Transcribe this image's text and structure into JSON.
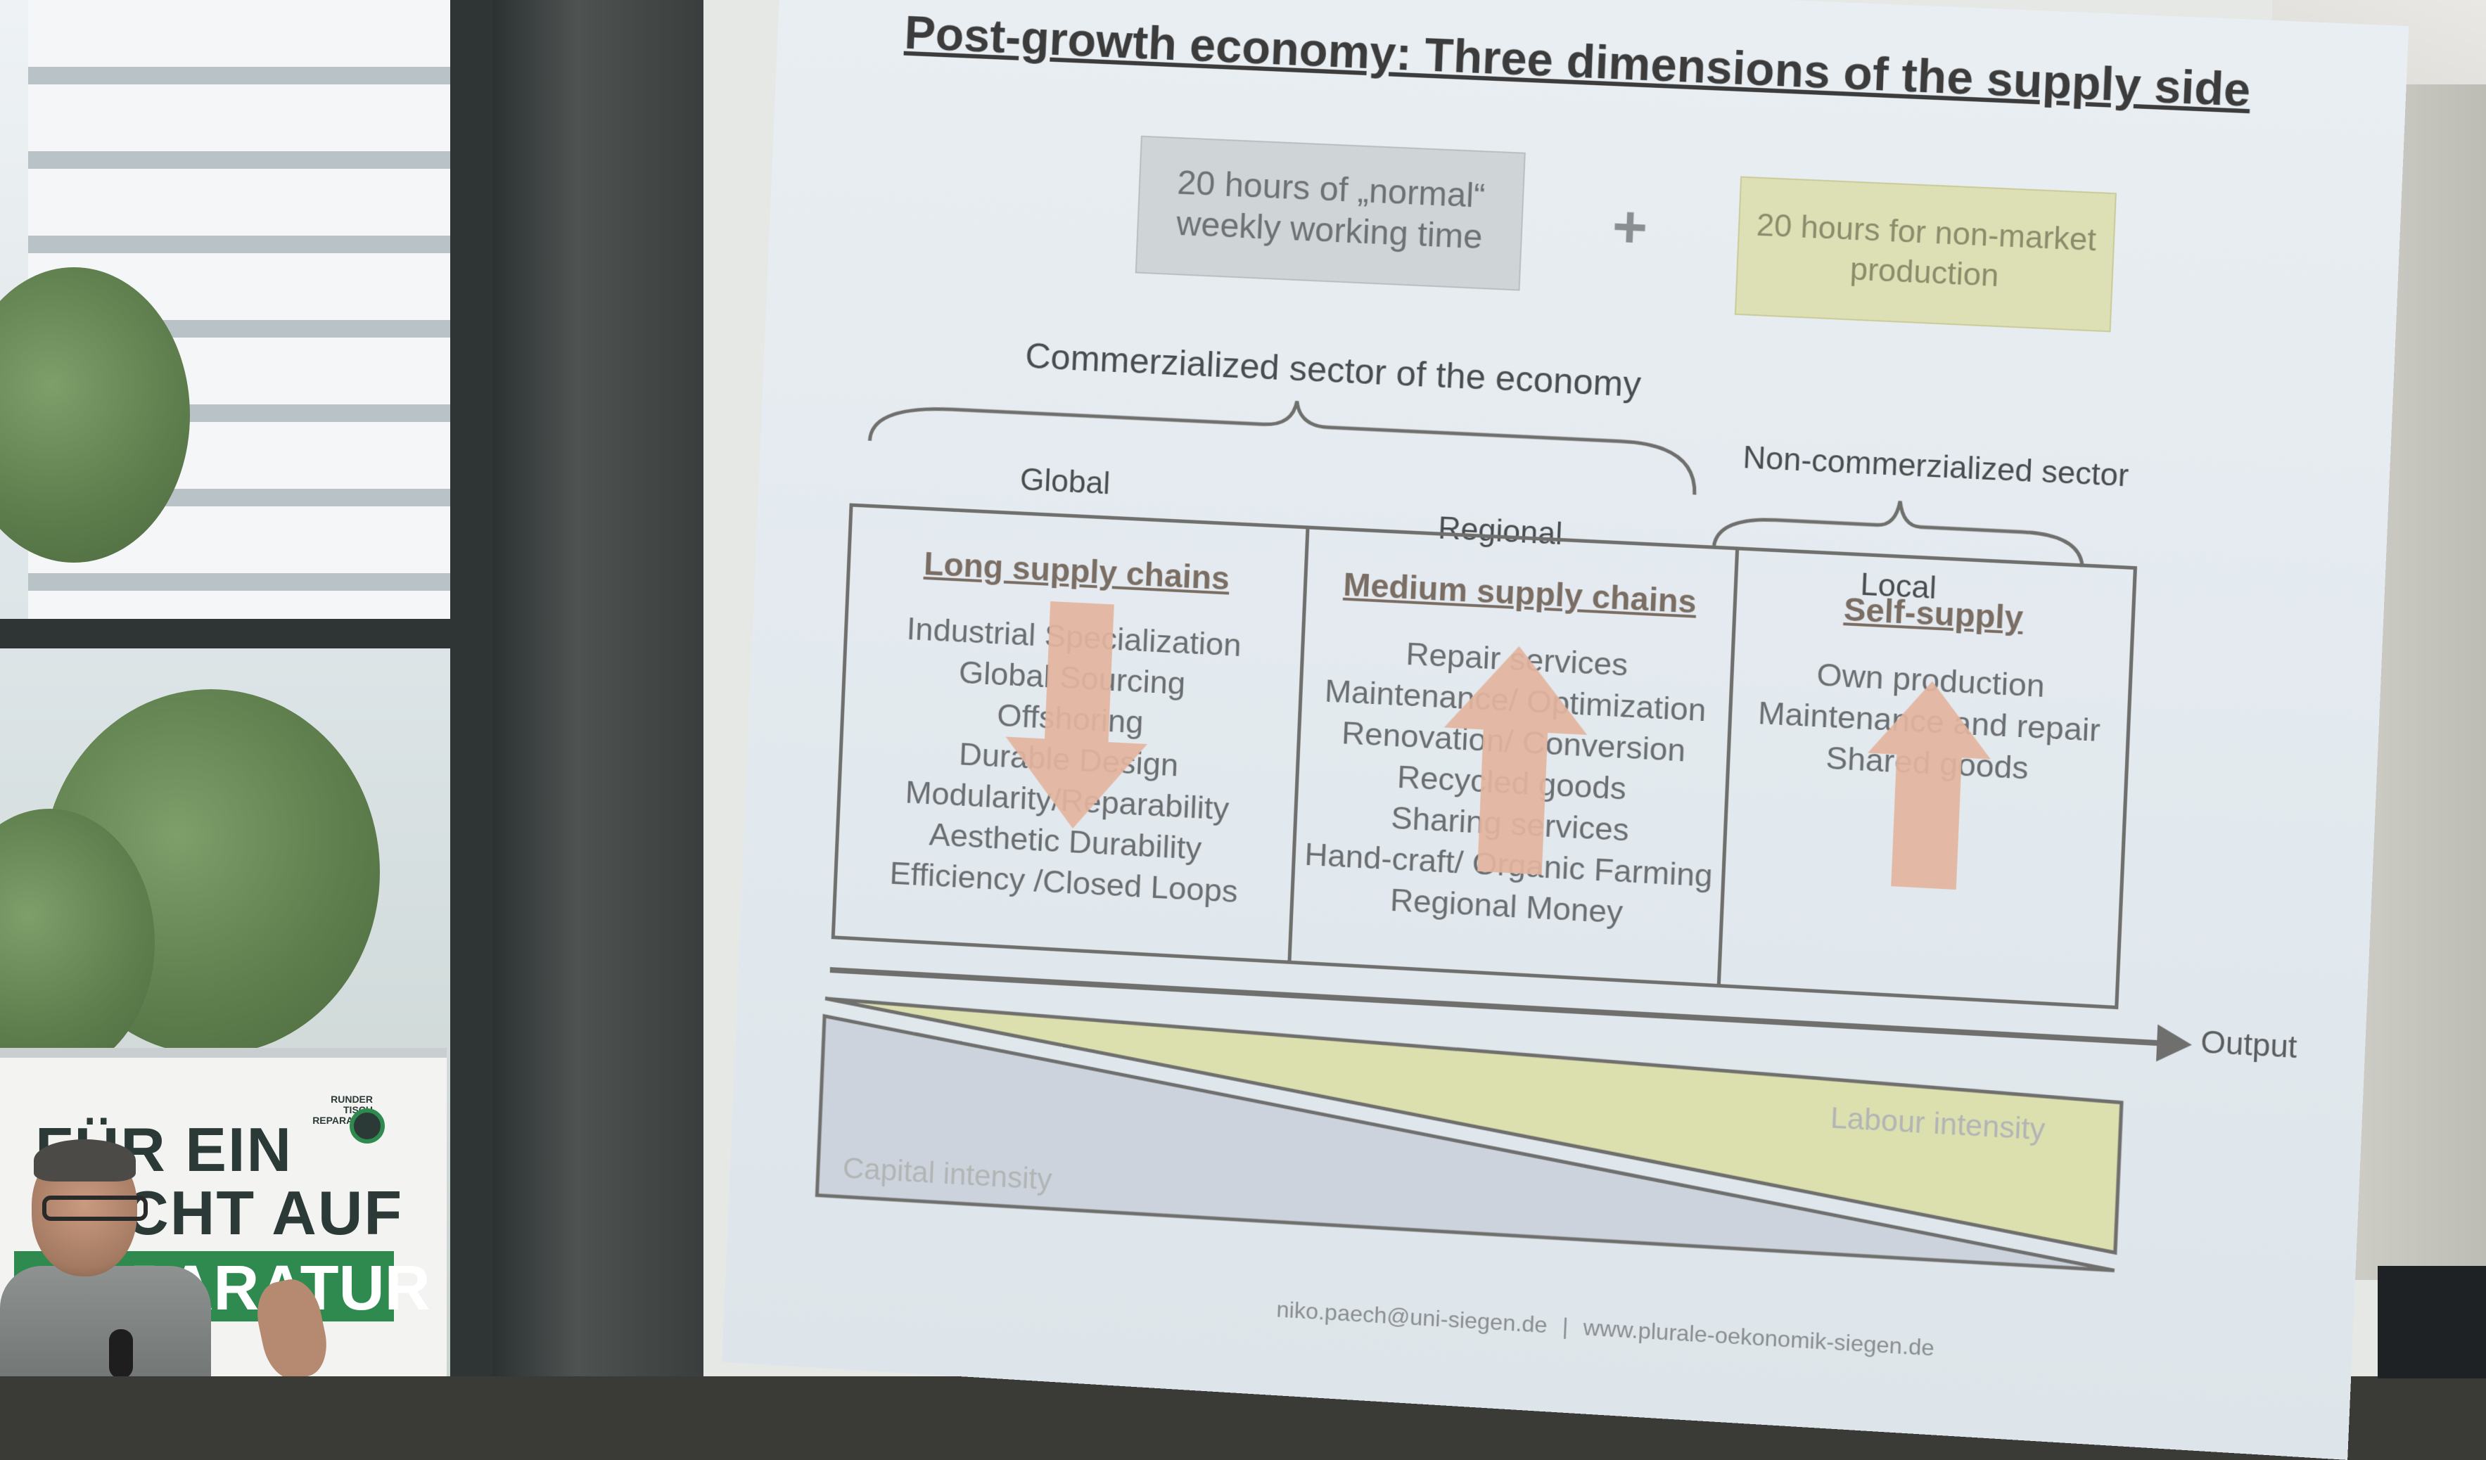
{
  "slide": {
    "title": "Post-growth economy: Three dimensions of the supply side",
    "box_normal_hours": "20 hours of „normal“ weekly working time",
    "plus_symbol": "+",
    "box_nonmarket_hours": "20 hours for non-market production",
    "commercialized_label": "Commerzialized sector of the economy",
    "noncommercialized_label": "Non-commerzialized sector",
    "scale_global": "Global",
    "scale_regional": "Regional",
    "scale_local": "Local",
    "columns": [
      {
        "heading": "Long supply chains",
        "items": [
          "Industrial Specialization",
          "Global Sourcing",
          "Offshoring",
          "Durable Design",
          "Modularity/Reparability",
          "Aesthetic Durability",
          "Efficiency /Closed Loops"
        ],
        "arrow_direction": "down"
      },
      {
        "heading": "Medium supply chains",
        "items": [
          "Repair services",
          "Maintenance/ Optimization",
          "Renovation/ Conversion",
          "Recycled goods",
          "Sharing services",
          "Hand-craft/ Organic Farming",
          "Regional Money"
        ],
        "arrow_direction": "up"
      },
      {
        "heading": "Self-supply",
        "items": [
          "Own production",
          "Maintenance and repair",
          "Shared goods"
        ],
        "arrow_direction": "up"
      }
    ],
    "output_label": "Output",
    "labour_intensity_label": "Labour intensity",
    "capital_intensity_label": "Capital intensity",
    "footer_email": "niko.paech@uni-siegen.de",
    "footer_separator": "|",
    "footer_url": "www.plurale-oekonomik-siegen.de"
  },
  "banner": {
    "line1": "FÜR EIN",
    "line2": "RECHT AUF",
    "line3": "REPARATUR",
    "logo_text": "RUNDER TISCH REPARATUR"
  },
  "colors": {
    "arrow": "#e3b4a0",
    "labour_fill": "#dcdfae",
    "capital_fill": "#ccd3dc",
    "banner_green": "#2f8a4f"
  }
}
